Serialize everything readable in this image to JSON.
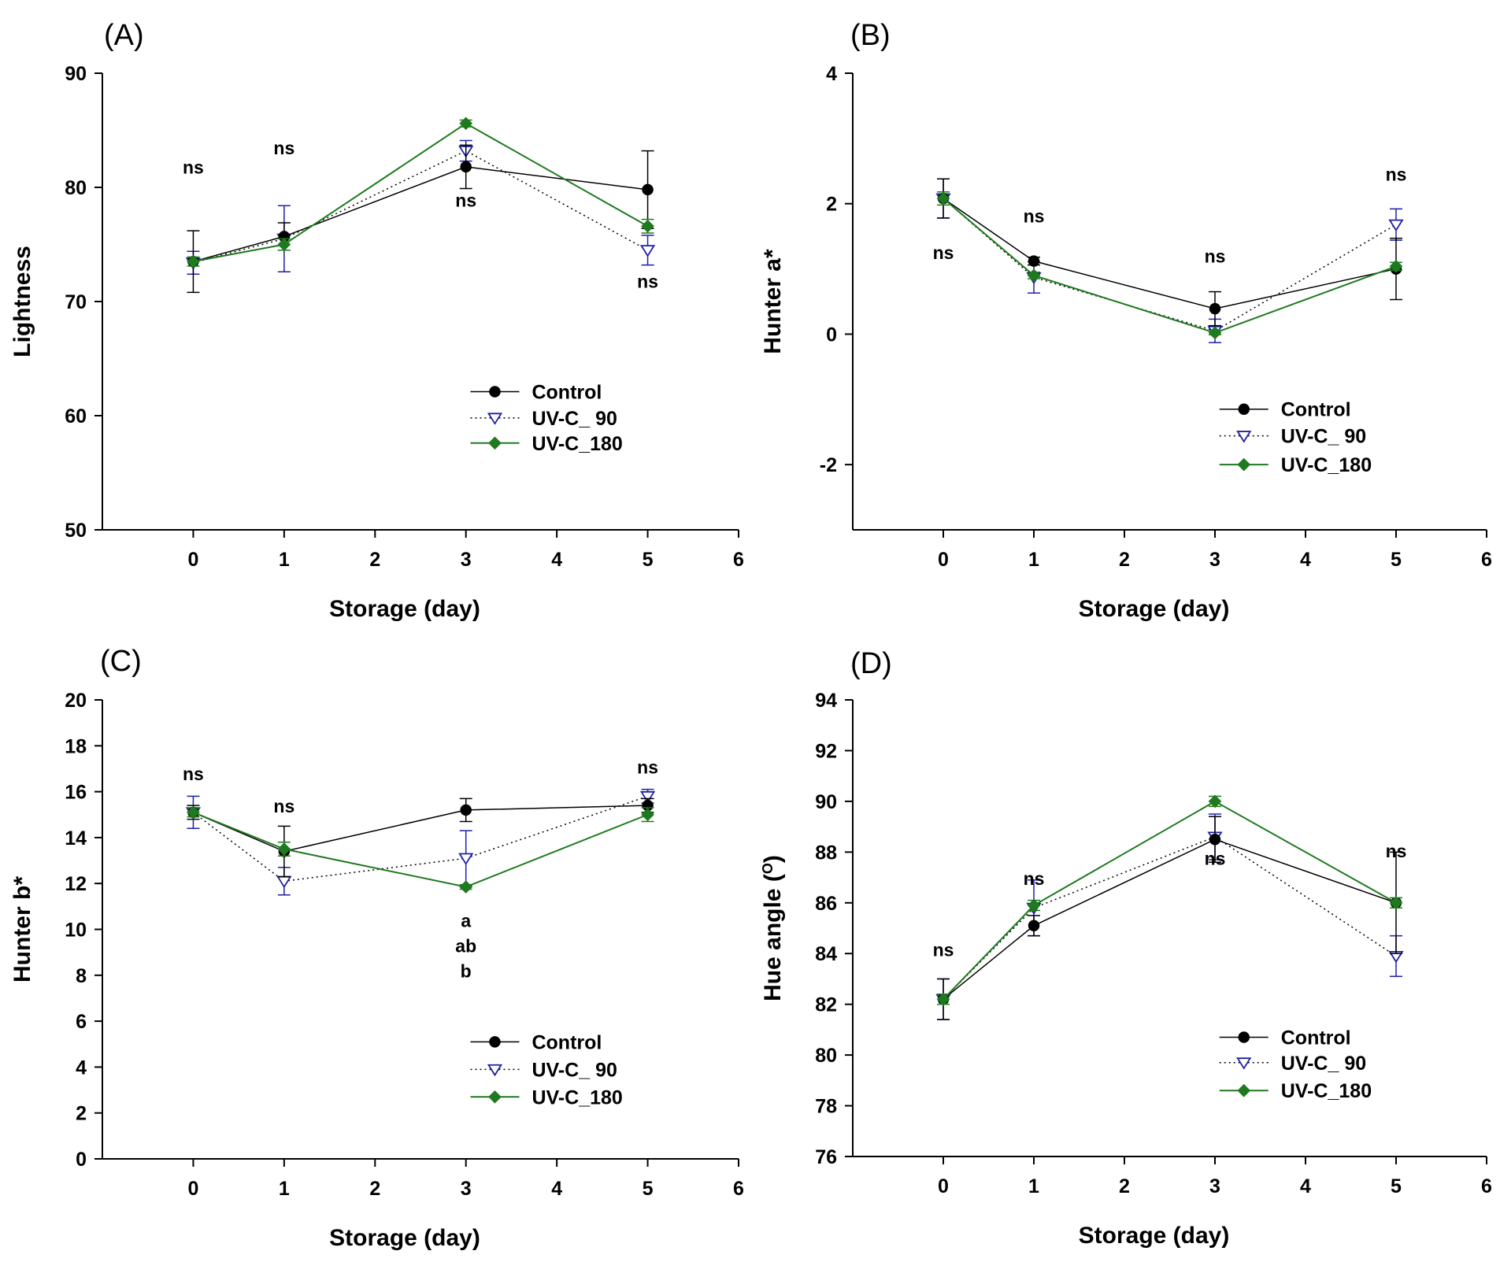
{
  "colors": {
    "control": "#000000",
    "uvc90": "#1f1fa8",
    "uvc180": "#1f7a1f",
    "axis": "#000000"
  },
  "legend": [
    "Control",
    "UV-C_ 90",
    "UV-C_180"
  ],
  "chart_data": [
    {
      "type": "line",
      "panel": "(A)",
      "xlabel": "Storage (day)",
      "ylabel": "Lightness",
      "xlim": [
        -1,
        6
      ],
      "ylim": [
        50,
        90
      ],
      "xticks": [
        0,
        1,
        2,
        3,
        4,
        5,
        6
      ],
      "yticks": [
        50,
        60,
        70,
        80,
        90
      ],
      "x": [
        0,
        1,
        3,
        5
      ],
      "series": [
        {
          "name": "Control",
          "values": [
            73.5,
            75.7,
            81.8,
            79.8
          ],
          "err": [
            2.7,
            1.2,
            1.9,
            3.4
          ]
        },
        {
          "name": "UV-C_ 90",
          "values": [
            73.4,
            75.5,
            83.2,
            74.5
          ],
          "err": [
            1.0,
            2.9,
            0.9,
            1.3
          ]
        },
        {
          "name": "UV-C_180",
          "values": [
            73.5,
            75.0,
            85.6,
            76.6
          ],
          "err": [
            0.4,
            0.5,
            0.3,
            0.6
          ]
        }
      ],
      "annotations": [
        {
          "x": 0,
          "y": 81.2,
          "text": "ns"
        },
        {
          "x": 1,
          "y": 82.9,
          "text": "ns"
        },
        {
          "x": 3,
          "y": 78.3,
          "text": "ns"
        },
        {
          "x": 5,
          "y": 71.2,
          "text": "ns"
        }
      ],
      "legend_y": [
        62.1,
        59.8,
        57.6
      ]
    },
    {
      "type": "line",
      "panel": "(B)",
      "xlabel": "Storage (day)",
      "ylabel": "Hunter a*",
      "xlim": [
        -1,
        6
      ],
      "ylim": [
        -3,
        4
      ],
      "xticks": [
        0,
        1,
        2,
        3,
        4,
        5,
        6
      ],
      "yticks": [
        -2,
        0,
        2,
        4
      ],
      "x": [
        0,
        1,
        3,
        5
      ],
      "series": [
        {
          "name": "Control",
          "values": [
            2.08,
            1.12,
            0.39,
            1.0
          ],
          "err": [
            0.3,
            0.06,
            0.26,
            0.47
          ]
        },
        {
          "name": "UV-C_ 90",
          "values": [
            2.08,
            0.87,
            0.05,
            1.68
          ],
          "err": [
            0.3,
            0.24,
            0.18,
            0.24
          ]
        },
        {
          "name": "UV-C_180",
          "values": [
            2.08,
            0.9,
            0.02,
            1.04
          ],
          "err": [
            0.1,
            0.05,
            0.03,
            0.06
          ]
        }
      ],
      "annotations": [
        {
          "x": 0,
          "y": 1.15,
          "text": "ns"
        },
        {
          "x": 1,
          "y": 1.71,
          "text": "ns"
        },
        {
          "x": 3,
          "y": 1.1,
          "text": "ns"
        },
        {
          "x": 5,
          "y": 2.35,
          "text": "ns"
        }
      ],
      "legend_y": [
        -1.15,
        -1.56,
        -2.0
      ]
    },
    {
      "type": "line",
      "panel": "(C)",
      "xlabel": "Storage (day)",
      "ylabel": "Hunter b*",
      "xlim": [
        -1,
        6
      ],
      "ylim": [
        0,
        20
      ],
      "xticks": [
        0,
        1,
        2,
        3,
        4,
        5,
        6
      ],
      "yticks": [
        0,
        2,
        4,
        6,
        8,
        10,
        12,
        14,
        16,
        18,
        20
      ],
      "x": [
        0,
        1,
        3,
        5
      ],
      "series": [
        {
          "name": "Control",
          "values": [
            15.1,
            13.4,
            15.2,
            15.4
          ],
          "err": [
            0.3,
            1.1,
            0.5,
            0.3
          ]
        },
        {
          "name": "UV-C_ 90",
          "values": [
            15.1,
            12.1,
            13.1,
            15.8
          ],
          "err": [
            0.7,
            0.6,
            1.2,
            0.3
          ]
        },
        {
          "name": "UV-C_180",
          "values": [
            15.1,
            13.5,
            11.85,
            15.0
          ],
          "err": [
            0.2,
            0.3,
            0.1,
            0.3
          ]
        }
      ],
      "annotations": [
        {
          "x": 0,
          "y": 16.5,
          "text": "ns"
        },
        {
          "x": 1,
          "y": 15.1,
          "text": "ns"
        },
        {
          "x": 3,
          "y": 10.1,
          "text": "a"
        },
        {
          "x": 3,
          "y": 9.0,
          "text": "ab"
        },
        {
          "x": 3,
          "y": 7.9,
          "text": "b"
        },
        {
          "x": 5,
          "y": 16.8,
          "text": "ns"
        }
      ],
      "legend_y": [
        5.1,
        3.9,
        2.7
      ]
    },
    {
      "type": "line",
      "panel": "(D)",
      "xlabel": "Storage (day)",
      "ylabel": "Hue angle (°)",
      "xlim": [
        -1,
        6
      ],
      "ylim": [
        76,
        94
      ],
      "xticks": [
        0,
        1,
        2,
        3,
        4,
        5,
        6
      ],
      "yticks": [
        76,
        78,
        80,
        82,
        84,
        86,
        88,
        90,
        92,
        94
      ],
      "x": [
        0,
        1,
        3,
        5
      ],
      "series": [
        {
          "name": "Control",
          "values": [
            82.2,
            85.1,
            88.5,
            86.0
          ],
          "err": [
            0.8,
            0.4,
            0.9,
            2.0
          ]
        },
        {
          "name": "UV-C_ 90",
          "values": [
            82.2,
            85.8,
            88.6,
            83.9
          ],
          "err": [
            0.8,
            1.1,
            0.9,
            0.8
          ]
        },
        {
          "name": "UV-C_180",
          "values": [
            82.2,
            85.9,
            90.0,
            86.0
          ],
          "err": [
            0.2,
            0.2,
            0.2,
            0.2
          ]
        }
      ],
      "annotations": [
        {
          "x": 0,
          "y": 83.9,
          "text": "ns"
        },
        {
          "x": 1,
          "y": 86.7,
          "text": "ns"
        },
        {
          "x": 3,
          "y": 87.5,
          "text": "ns"
        },
        {
          "x": 5,
          "y": 87.8,
          "text": "ns"
        }
      ],
      "legend_y": [
        80.7,
        79.7,
        78.6
      ]
    }
  ]
}
